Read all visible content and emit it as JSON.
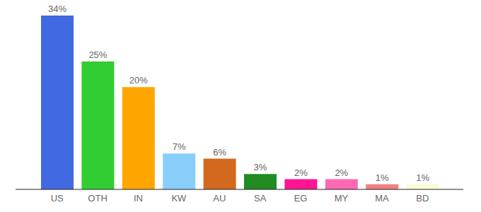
{
  "chart_data": {
    "type": "bar",
    "categories": [
      "US",
      "OTH",
      "IN",
      "KW",
      "AU",
      "SA",
      "EG",
      "MY",
      "MA",
      "BD"
    ],
    "values": [
      34,
      25,
      20,
      7,
      6,
      3,
      2,
      2,
      1,
      1
    ],
    "value_labels": [
      "34%",
      "25%",
      "20%",
      "7%",
      "6%",
      "3%",
      "2%",
      "2%",
      "1%",
      "1%"
    ],
    "colors": [
      "#4169e1",
      "#32cd32",
      "#ffa500",
      "#87cefa",
      "#d2691e",
      "#228b22",
      "#ff1493",
      "#ff69b4",
      "#f08080",
      "#fafad2"
    ],
    "data_labels": true,
    "tick_labels": "x"
  }
}
